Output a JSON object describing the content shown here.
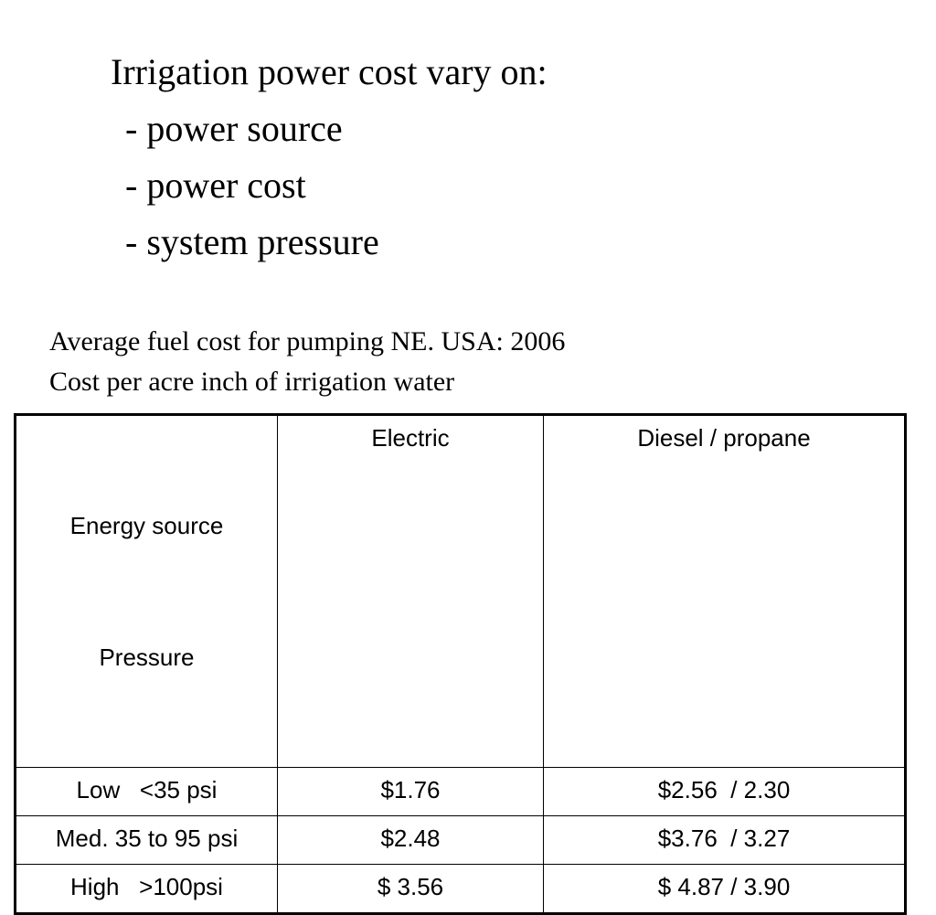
{
  "heading": {
    "title": "Irrigation power cost vary on:",
    "bullets": [
      "- power source",
      "- power cost",
      "- system pressure"
    ]
  },
  "caption": {
    "line1": "Average fuel cost for pumping NE.  USA: 2006",
    "line2": "Cost per acre inch of irrigation water"
  },
  "table": {
    "header": {
      "col1_line1": "Energy source",
      "col1_line2": "Pressure",
      "col2": "Electric",
      "col3": "Diesel / propane"
    },
    "rows": [
      {
        "pressure": "Low   <35 psi",
        "electric": "$1.76",
        "diesel_propane": "$2.56  / 2.30"
      },
      {
        "pressure": "Med. 35 to 95 psi",
        "electric": "$2.48",
        "diesel_propane": "$3.76  / 3.27"
      },
      {
        "pressure": "High   >100psi",
        "electric": "$ 3.56",
        "diesel_propane": "$ 4.87 / 3.90"
      }
    ]
  }
}
